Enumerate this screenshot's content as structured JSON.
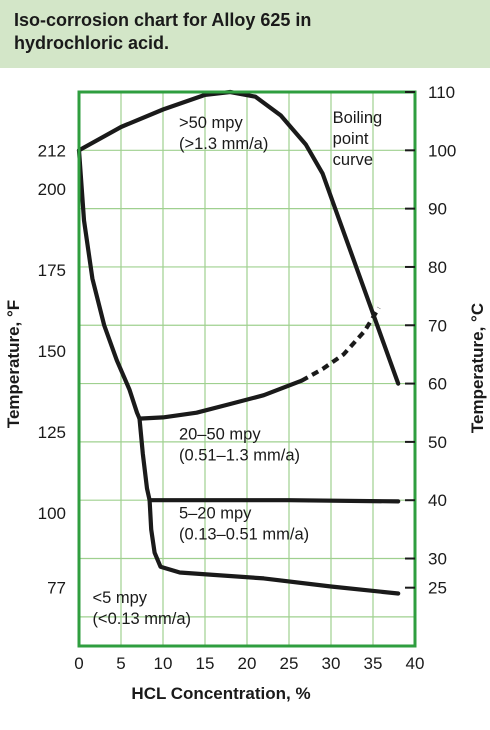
{
  "title": {
    "line1": "Iso-corrosion chart for Alloy 625 in",
    "line2": "hydrochloric acid."
  },
  "colors": {
    "title_bg": "#d3e6c8",
    "frame": "#2f9e3f",
    "grid": "#9fd08f",
    "curve": "#1a1a1a"
  },
  "chart_data": {
    "type": "line",
    "xlabel": "HCL Concentration, %",
    "ylabel_left": "Temperature, °F",
    "ylabel_right": "Temperature, °C",
    "xlim": [
      0,
      40
    ],
    "ylim_c": [
      15,
      110
    ],
    "x_ticks": [
      0,
      5,
      10,
      15,
      20,
      25,
      30,
      35,
      40
    ],
    "left_ticks_f": [
      "77",
      "100",
      "125",
      "150",
      "175",
      "200",
      "212"
    ],
    "right_ticks_c": [
      "25",
      "30",
      "40",
      "50",
      "60",
      "70",
      "80",
      "90",
      "100",
      "110"
    ],
    "grid": true,
    "annotations": [
      {
        "lines": [
          ">50 mpy",
          "(>1.3 mm/a)"
        ],
        "x": 11.9,
        "y": 103.8
      },
      {
        "lines": [
          "Boiling",
          "point",
          "curve"
        ],
        "x": 30.2,
        "y": 104.7
      },
      {
        "lines": [
          "20–50 mpy",
          "(0.51–1.3 mm/a)"
        ],
        "x": 11.9,
        "y": 50.4
      },
      {
        "lines": [
          "5–20 mpy",
          "(0.13–0.51 mm/a)"
        ],
        "x": 11.9,
        "y": 36.9
      },
      {
        "lines": [
          "<5 mpy",
          "(<0.13 mm/a)"
        ],
        "x": 1.6,
        "y": 22.4
      }
    ],
    "series": [
      {
        "id": "boiling-point-curve",
        "dashed": false,
        "points": [
          [
            0,
            100
          ],
          [
            5,
            104
          ],
          [
            10,
            107
          ],
          [
            15,
            109.5
          ],
          [
            18,
            110
          ],
          [
            21,
            109.2
          ],
          [
            24,
            106
          ],
          [
            27,
            101
          ],
          [
            29,
            96
          ],
          [
            31,
            88
          ],
          [
            33,
            80
          ],
          [
            35,
            72
          ],
          [
            37,
            64
          ],
          [
            38,
            60
          ]
        ]
      },
      {
        "id": "iso-line-50mpy",
        "dashed": false,
        "points": [
          [
            0,
            100
          ],
          [
            0.6,
            88
          ],
          [
            1.6,
            78
          ],
          [
            3,
            70
          ],
          [
            4.5,
            64
          ],
          [
            6,
            59
          ],
          [
            6.9,
            55
          ],
          [
            7.2,
            54
          ]
        ]
      },
      {
        "id": "iso-line-20-50mpy",
        "dashed": false,
        "points": [
          [
            7.2,
            54
          ],
          [
            10,
            54.2
          ],
          [
            14,
            55
          ],
          [
            18,
            56.5
          ],
          [
            22,
            58
          ],
          [
            26.5,
            60.5
          ]
        ]
      },
      {
        "id": "iso-line-20-50mpy-extrapolated",
        "dashed": true,
        "points": [
          [
            26.5,
            60.5
          ],
          [
            29,
            62.5
          ],
          [
            31.5,
            65
          ],
          [
            34,
            69
          ],
          [
            35.7,
            73
          ]
        ]
      },
      {
        "id": "iso-line-5-20mpy",
        "dashed": false,
        "points": [
          [
            7.2,
            54
          ],
          [
            7.6,
            48
          ],
          [
            8.1,
            42
          ],
          [
            8.4,
            40
          ],
          [
            15,
            40
          ],
          [
            25,
            40
          ],
          [
            38,
            39.8
          ]
        ]
      },
      {
        "id": "iso-line-5mpy",
        "dashed": false,
        "points": [
          [
            8.4,
            40
          ],
          [
            8.6,
            35
          ],
          [
            9,
            31
          ],
          [
            9.7,
            28.6
          ],
          [
            12,
            27.6
          ],
          [
            16,
            27.2
          ],
          [
            22,
            26.6
          ],
          [
            30,
            25.2
          ],
          [
            38,
            24
          ]
        ]
      }
    ]
  }
}
